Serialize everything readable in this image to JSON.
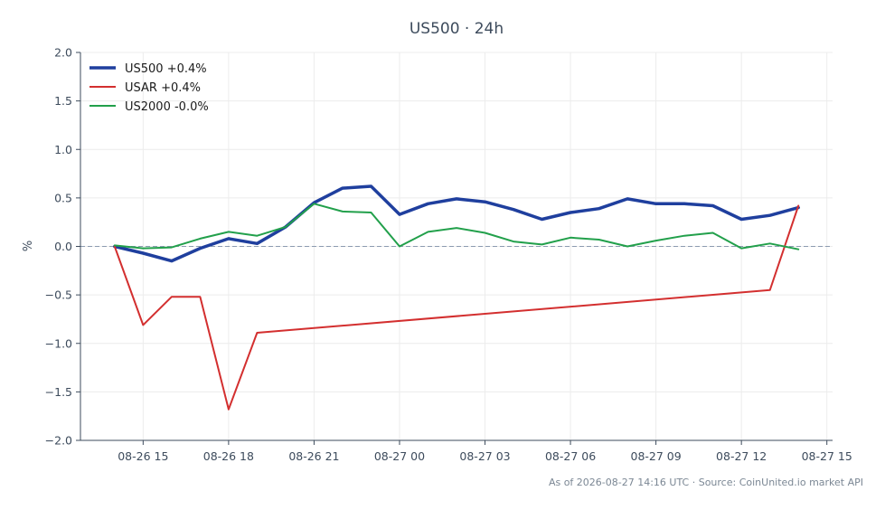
{
  "chart_data": {
    "type": "line",
    "title": "US500 · 24h",
    "xlabel": "",
    "ylabel": "%",
    "ylim": [
      -2.0,
      2.0
    ],
    "yticks": [
      "2.0",
      "1.5",
      "1.0",
      "0.5",
      "0.0",
      "−0.5",
      "−1.0",
      "−1.5",
      "−2.0"
    ],
    "ytick_values": [
      2.0,
      1.5,
      1.0,
      0.5,
      0.0,
      -0.5,
      -1.0,
      -1.5,
      -2.0
    ],
    "xticks": [
      "08-26 15",
      "08-26 18",
      "08-26 21",
      "08-27 00",
      "08-27 03",
      "08-27 06",
      "08-27 09",
      "08-27 12",
      "08-27 15"
    ],
    "x_range_hours": [
      -1.2,
      25.2
    ],
    "x_start": "08-26 14:00",
    "grid": true,
    "legend_position": "top-left",
    "reference_line": 0.0,
    "source_note": "As of 2026-08-27 14:16 UTC · Source: CoinUnited.io market API",
    "series": [
      {
        "name": "US500 +0.4%",
        "color": "#1f3f9e",
        "line_width": 3.5,
        "x": [
          0,
          1,
          2,
          3,
          4,
          5,
          6,
          7,
          8,
          9,
          10,
          11,
          12,
          13,
          14,
          15,
          16,
          17,
          18,
          19,
          20,
          21,
          22,
          23,
          24
        ],
        "values": [
          0.0,
          -0.07,
          -0.15,
          -0.02,
          0.08,
          0.03,
          0.2,
          0.45,
          0.6,
          0.62,
          0.33,
          0.44,
          0.49,
          0.46,
          0.38,
          0.28,
          0.35,
          0.39,
          0.49,
          0.44,
          0.44,
          0.42,
          0.28,
          0.32,
          0.4
        ]
      },
      {
        "name": "USAR +0.4%",
        "color": "#d32f2f",
        "line_width": 2,
        "x": [
          0,
          1,
          2,
          3,
          4,
          5,
          23,
          24
        ],
        "values": [
          0.0,
          -0.81,
          -0.52,
          -0.52,
          -1.68,
          -0.89,
          -0.45,
          0.42
        ]
      },
      {
        "name": "US2000 -0.0%",
        "color": "#22a04b",
        "line_width": 2,
        "x": [
          0,
          1,
          2,
          3,
          4,
          5,
          6,
          7,
          8,
          9,
          10,
          11,
          12,
          13,
          14,
          15,
          16,
          17,
          18,
          19,
          20,
          21,
          22,
          23,
          24
        ],
        "values": [
          0.01,
          -0.02,
          -0.01,
          0.08,
          0.15,
          0.11,
          0.2,
          0.44,
          0.36,
          0.35,
          0.0,
          0.15,
          0.19,
          0.14,
          0.05,
          0.02,
          0.09,
          0.07,
          0.0,
          0.06,
          0.11,
          0.14,
          -0.02,
          0.03,
          -0.03
        ]
      }
    ]
  }
}
